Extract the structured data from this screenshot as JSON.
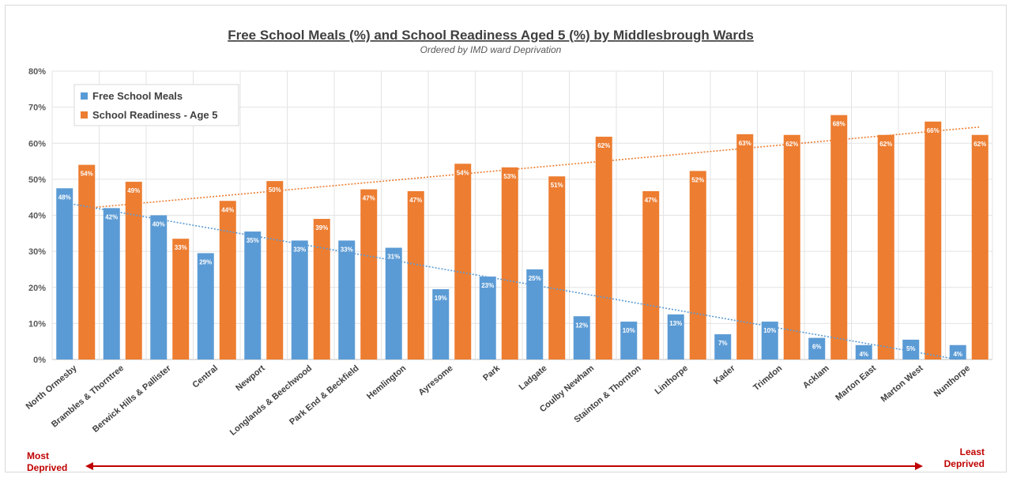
{
  "chart_data": {
    "type": "bar",
    "title": "Free School Meals (%) and School Readiness Aged 5 (%) by Middlesbrough Wards",
    "subtitle": "Ordered by IMD ward Deprivation",
    "categories": [
      "North Ormesby",
      "Brambles & Thorntree",
      "Berwick Hills & Pallister",
      "Central",
      "Newport",
      "Longlands & Beechwood",
      "Park End & Beckfield",
      "Hemlington",
      "Ayresome",
      "Park",
      "Ladgate",
      "Coulby Newham",
      "Stainton & Thornton",
      "Linthorpe",
      "Kader",
      "Trimdon",
      "Acklam",
      "Marton East",
      "Marton West",
      "Nunthorpe"
    ],
    "series": [
      {
        "name": "Free School Meals",
        "color": "#5b9bd5",
        "values": [
          47.5,
          42,
          40,
          29.5,
          35.5,
          33,
          33,
          31,
          19.5,
          23,
          25,
          12,
          10.5,
          12.5,
          7,
          10.5,
          6,
          4,
          5.5,
          4
        ],
        "labels": [
          "48%",
          "42%",
          "40%",
          "29%",
          "35%",
          "33%",
          "33%",
          "31%",
          "19%",
          "23%",
          "25%",
          "12%",
          "10%",
          "13%",
          "7%",
          "10%",
          "6%",
          "4%",
          "5%",
          "4%"
        ]
      },
      {
        "name": "School Readiness - Age 5",
        "color": "#ed7d31",
        "values": [
          54,
          49.3,
          33.5,
          44,
          49.5,
          39,
          47.2,
          46.7,
          54.3,
          53.3,
          50.8,
          61.8,
          46.7,
          52.3,
          62.5,
          62.3,
          67.8,
          62.3,
          66,
          62.3
        ],
        "labels": [
          "54%",
          "49%",
          "33%",
          "44%",
          "50%",
          "39%",
          "47%",
          "47%",
          "54%",
          "53%",
          "51%",
          "62%",
          "47%",
          "52%",
          "63%",
          "62%",
          "68%",
          "62%",
          "66%",
          "62%"
        ]
      }
    ],
    "trendlines": [
      {
        "series": "Free School Meals",
        "start": 43.5,
        "end": 0,
        "color": "#5b9bd5"
      },
      {
        "series": "School Readiness - Age 5",
        "start": 42,
        "end": 64.5,
        "color": "#ed7d31"
      }
    ],
    "y_ticks": [
      "0%",
      "10%",
      "20%",
      "30%",
      "40%",
      "50%",
      "60%",
      "70%",
      "80%"
    ],
    "ylim": [
      0,
      80
    ],
    "grid": true,
    "legend_position": "top-left",
    "xlabel": "",
    "ylabel": ""
  },
  "annotations": {
    "most_deprived_line1": "Most",
    "most_deprived_line2": "Deprived",
    "least_deprived_line1": "Least",
    "least_deprived_line2": "Deprived",
    "arrow_color": "#c00000"
  }
}
